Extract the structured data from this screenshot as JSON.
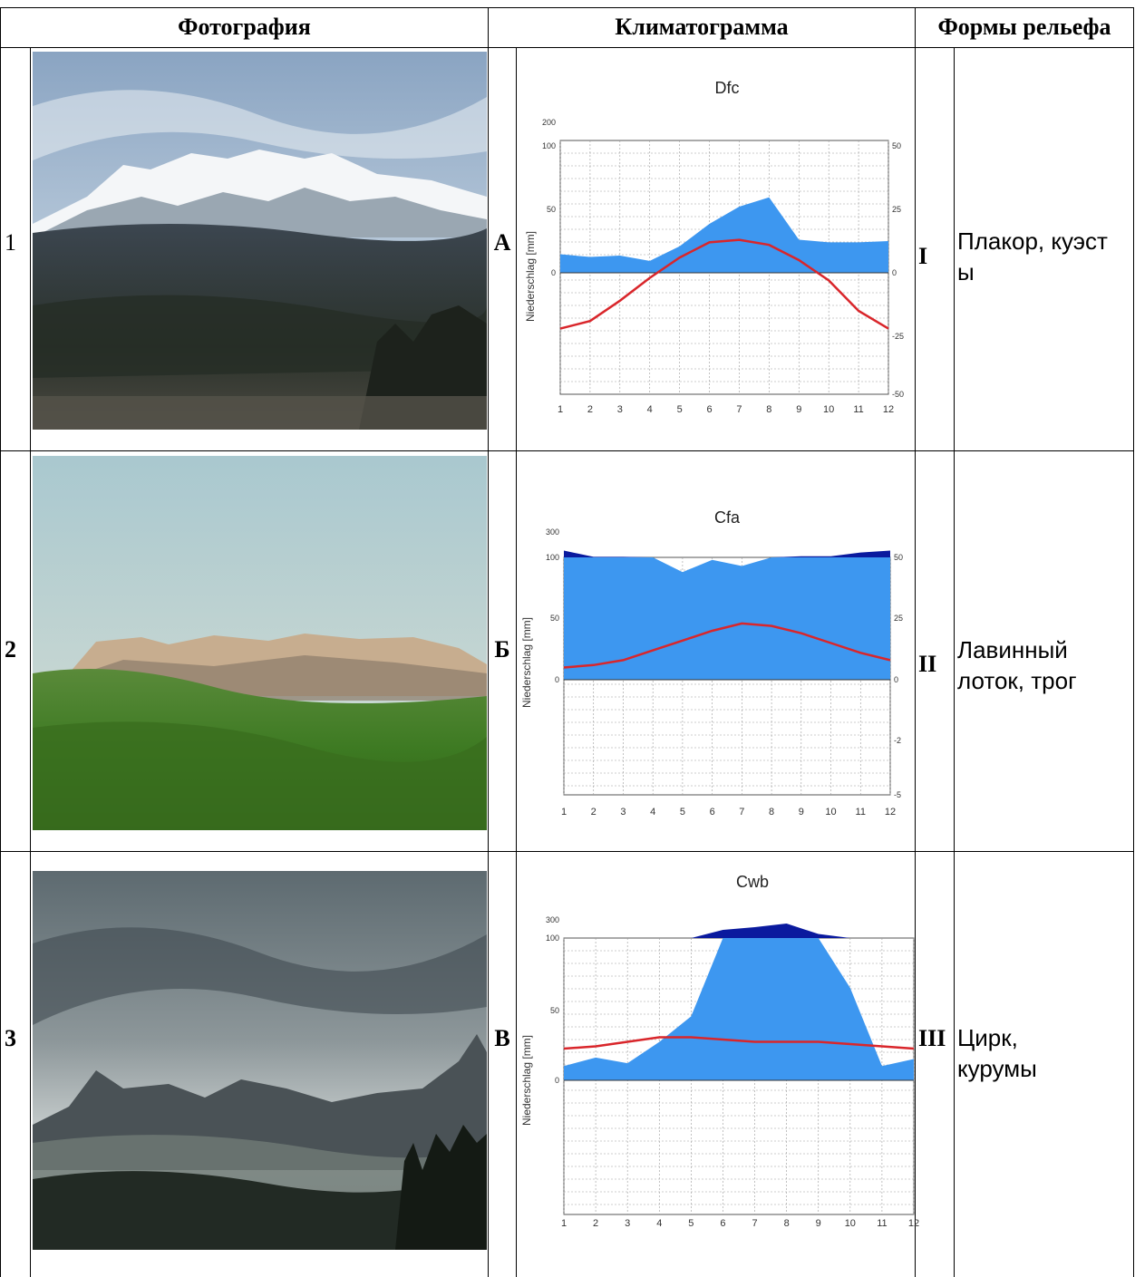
{
  "headers": {
    "photo": "Фотография",
    "climatogram": "Климатограмма",
    "relief": "Формы рельефа"
  },
  "rows": [
    {
      "number": "1",
      "letter": "А",
      "roman": "I",
      "relief": "Плакор, куэст ы",
      "relief_lines": [
        "Плакор, куэст",
        "ы"
      ],
      "photo": "snow-capped-mountain-photo"
    },
    {
      "number": "2",
      "letter": "Б",
      "roman": "II",
      "relief": "Лавинный лоток, трог",
      "relief_lines": [
        "Лавинный",
        "лоток, трог"
      ],
      "photo": "forested-ridge-photo"
    },
    {
      "number": "3",
      "letter": "В",
      "roman": "III",
      "relief": "Цирк, курумы",
      "relief_lines": [
        "Цирк,",
        "курумы"
      ],
      "photo": "rocky-peaks-cloudy-photo"
    }
  ],
  "colors": {
    "precipitation": "#3d97f0",
    "precipitation_excess": "#0a1a9e",
    "temperature": "#d9262b",
    "grid": "#9a9a9a"
  },
  "chart_data": [
    {
      "type": "area",
      "title": "Dfc",
      "ylabel": "Niederschlag [mm]",
      "x": [
        1,
        2,
        3,
        4,
        5,
        6,
        7,
        8,
        9,
        10,
        11,
        12
      ],
      "x_ticks": [
        "1",
        "2",
        "3",
        "4",
        "5",
        "6",
        "7",
        "8",
        "9",
        "10",
        "11",
        "12"
      ],
      "y_left_ticks": [
        "200",
        "100",
        "50",
        "0"
      ],
      "y_right_ticks": [
        "50",
        "25",
        "0",
        "-25",
        "-50"
      ],
      "series": [
        {
          "values": [
            14,
            12,
            13,
            9,
            20,
            37,
            50,
            57,
            25,
            23,
            23,
            24
          ]
        },
        {
          "values": [
            -22,
            -19,
            -11,
            -2,
            6,
            12,
            13,
            11,
            5,
            -3,
            -15,
            -22
          ]
        }
      ]
    },
    {
      "type": "area",
      "title": "Cfa",
      "ylabel": "Niederschlag [mm]",
      "x": [
        1,
        2,
        3,
        4,
        5,
        6,
        7,
        8,
        9,
        10,
        11,
        12
      ],
      "x_ticks": [
        "1",
        "2",
        "3",
        "4",
        "5",
        "6",
        "7",
        "8",
        "9",
        "10",
        "11",
        "12"
      ],
      "y_left_ticks": [
        "300",
        "100",
        "50",
        "0"
      ],
      "y_right_ticks": [
        "50",
        "25",
        "0",
        "-2",
        "-5"
      ],
      "series": [
        {
          "values": [
            125,
            102,
            102,
            100,
            88,
            98,
            93,
            100,
            104,
            104,
            118,
            125
          ]
        },
        {
          "values": [
            5,
            6,
            8,
            12,
            16,
            20,
            23,
            22,
            19,
            15,
            11,
            8
          ]
        }
      ]
    },
    {
      "type": "area",
      "title": "Cwb",
      "ylabel": "Niederschlag [mm]",
      "x": [
        1,
        2,
        3,
        4,
        5,
        6,
        7,
        8,
        9,
        10,
        11,
        12
      ],
      "x_ticks": [
        "1",
        "2",
        "3",
        "4",
        "5",
        "6",
        "7",
        "8",
        "9",
        "10",
        "11",
        "12"
      ],
      "y_left_ticks": [
        "300",
        "100",
        "50",
        "0"
      ],
      "y_right_ticks": [],
      "series": [
        {
          "values": [
            10,
            16,
            12,
            27,
            45,
            130,
            140,
            155,
            115,
            65,
            10,
            15
          ]
        },
        {
          "values": [
            14,
            15,
            17,
            19,
            19,
            18,
            17,
            17,
            17,
            16,
            15,
            14
          ]
        }
      ]
    }
  ]
}
